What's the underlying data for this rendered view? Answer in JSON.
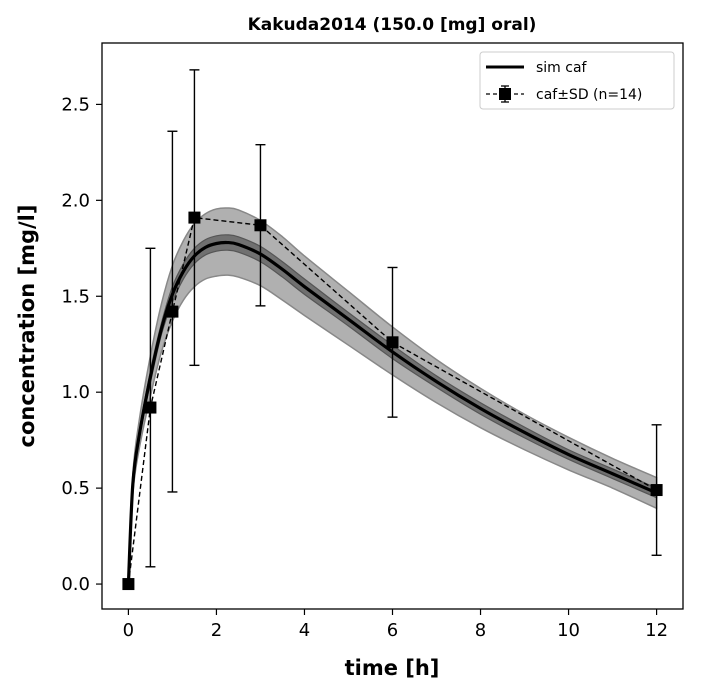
{
  "chart_data": {
    "type": "line",
    "title": "Kakuda2014 (150.0 [mg] oral)",
    "xlabel": "time [h]",
    "ylabel": "concentration [mg/l]",
    "xlim": [
      -0.6,
      12.6
    ],
    "ylim": [
      -0.13,
      2.82
    ],
    "xticks": [
      0,
      2,
      4,
      6,
      8,
      10,
      12
    ],
    "yticks": [
      0.0,
      0.5,
      1.0,
      1.5,
      2.0,
      2.5
    ],
    "xtick_labels": [
      "0",
      "2",
      "4",
      "6",
      "8",
      "10",
      "12"
    ],
    "ytick_labels": [
      "0.0",
      "0.5",
      "1.0",
      "1.5",
      "2.0",
      "2.5"
    ],
    "grid": false,
    "legend_position": "top-right",
    "colors": {
      "sim": "#000000",
      "outer_band": "#b0b0b0",
      "inner_band": "#707070",
      "data": "#000000"
    },
    "series": [
      {
        "name": "sim caf",
        "style": "solid",
        "x": [
          0,
          0.1,
          0.25,
          0.5,
          0.75,
          1.0,
          1.25,
          1.5,
          1.75,
          2.0,
          2.25,
          2.5,
          3.0,
          3.5,
          4.0,
          5.0,
          6.0,
          7.0,
          8.0,
          9.0,
          10.0,
          11.0,
          12.0
        ],
        "y": [
          0,
          0.52,
          0.78,
          1.08,
          1.33,
          1.51,
          1.63,
          1.71,
          1.755,
          1.775,
          1.78,
          1.77,
          1.72,
          1.64,
          1.55,
          1.38,
          1.21,
          1.055,
          0.915,
          0.79,
          0.675,
          0.575,
          0.475
        ],
        "band_outer": {
          "lower": [
            0,
            0.47,
            0.71,
            0.98,
            1.21,
            1.37,
            1.48,
            1.55,
            1.59,
            1.605,
            1.61,
            1.6,
            1.555,
            1.48,
            1.4,
            1.245,
            1.09,
            0.945,
            0.815,
            0.7,
            0.595,
            0.5,
            0.395
          ],
          "upper": [
            0,
            0.57,
            0.86,
            1.19,
            1.46,
            1.66,
            1.79,
            1.88,
            1.93,
            1.955,
            1.96,
            1.95,
            1.895,
            1.81,
            1.71,
            1.525,
            1.34,
            1.17,
            1.02,
            0.885,
            0.765,
            0.655,
            0.555
          ]
        },
        "band_inner": {
          "lower": [
            0,
            0.51,
            0.76,
            1.05,
            1.3,
            1.47,
            1.59,
            1.67,
            1.715,
            1.735,
            1.74,
            1.73,
            1.68,
            1.6,
            1.51,
            1.345,
            1.175,
            1.025,
            0.885,
            0.762,
            0.65,
            0.55,
            0.45
          ],
          "upper": [
            0,
            0.54,
            0.8,
            1.11,
            1.36,
            1.55,
            1.67,
            1.75,
            1.795,
            1.815,
            1.82,
            1.81,
            1.76,
            1.68,
            1.59,
            1.415,
            1.245,
            1.085,
            0.945,
            0.818,
            0.7,
            0.6,
            0.5
          ]
        }
      },
      {
        "name": "caf±SD (n=14)",
        "style": "dashed",
        "marker": "square",
        "x": [
          0,
          0.5,
          1.0,
          1.5,
          3.0,
          6.0,
          12.0
        ],
        "y": [
          0.0,
          0.92,
          1.42,
          1.91,
          1.87,
          1.26,
          0.49
        ],
        "yerr": [
          0,
          0.83,
          0.94,
          0.77,
          0.42,
          0.39,
          0.34
        ]
      }
    ]
  }
}
